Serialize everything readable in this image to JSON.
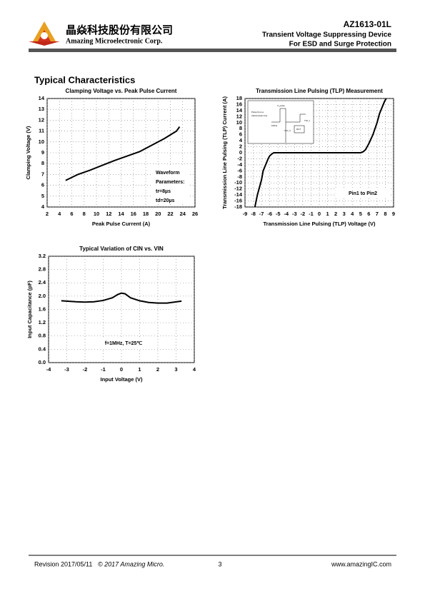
{
  "header": {
    "company_cn": "晶焱科技股份有限公司",
    "company_en": "Amazing Microelectronic Corp.",
    "part": "AZ1613-01L",
    "line1": "Transient Voltage Suppressing Device",
    "line2": "For ESD and Surge Protection"
  },
  "section_title": "Typical Characteristics",
  "chart_data": [
    {
      "type": "line",
      "title": "Clamping Voltage vs. Peak Pulse Current",
      "x_label": "Peak Pulse Current (A)",
      "y_label": "Clamping Voltage (V)",
      "x": [
        5,
        7,
        9,
        11,
        13,
        15,
        17,
        19,
        21,
        23,
        23.5
      ],
      "values": [
        6.45,
        7.0,
        7.4,
        7.85,
        8.3,
        8.7,
        9.1,
        9.7,
        10.3,
        11.0,
        11.4
      ],
      "color": "#000000",
      "xlim": [
        2,
        26
      ],
      "xticks": [
        2,
        4,
        6,
        8,
        10,
        12,
        14,
        16,
        18,
        20,
        22,
        24,
        26
      ],
      "ylim": [
        4,
        14
      ],
      "yticks": [
        4,
        5,
        6,
        7,
        8,
        9,
        10,
        11,
        12,
        13,
        14
      ],
      "grid": true,
      "annotations": [
        "Waveform",
        "Parameters:",
        "tr=8µs",
        "td=20µs"
      ]
    },
    {
      "type": "line",
      "title": "Transmission Line Pulsing (TLP) Measurement",
      "x_label": "Transmission Line Pulsing (TLP) Voltage (V)",
      "y_label": "Transmission Line Pulsing (TLP) Current (A)",
      "x": [
        -7.8,
        -7.5,
        -7.2,
        -7.0,
        -6.8,
        -6.5,
        -6.2,
        -6.0,
        -5.7,
        -5.5,
        -5.0,
        0,
        5.0,
        5.3,
        5.6,
        6.0,
        6.5,
        7.0,
        7.3,
        7.6,
        7.9,
        8.1
      ],
      "values": [
        -18,
        -14,
        -11,
        -9,
        -6,
        -4,
        -2,
        -1,
        -0.3,
        0,
        0,
        0,
        0,
        0.3,
        1,
        3,
        6,
        10,
        13,
        15,
        17,
        18
      ],
      "color": "#000000",
      "xlim": [
        -9,
        9
      ],
      "xticks": [
        -9,
        -8,
        -7,
        -6,
        -5,
        -4,
        -3,
        -2,
        -1,
        0,
        1,
        2,
        3,
        4,
        5,
        6,
        7,
        8,
        9
      ],
      "ylim": [
        -18,
        18
      ],
      "yticks": [
        -18,
        -16,
        -14,
        -12,
        -10,
        -8,
        -6,
        -4,
        -2,
        0,
        2,
        4,
        6,
        8,
        10,
        12,
        14,
        16,
        18
      ],
      "grid": true,
      "annotations": [
        "Pin1 to Pin2"
      ],
      "inset_labels": [
        "V_pulse",
        "Pulse from a",
        "transmission line",
        "100ns",
        "TLP_I",
        "TLP_V",
        "DUT"
      ]
    },
    {
      "type": "line",
      "title": "Typical Variation of CIN vs. VIN",
      "x_label": "Input Voltage (V)",
      "y_label": "Input Capacitance (pF)",
      "x": [
        -3.3,
        -2.5,
        -2,
        -1.5,
        -1,
        -0.5,
        -0.2,
        0,
        0.2,
        0.5,
        1,
        1.5,
        2,
        2.5,
        3.3
      ],
      "values": [
        1.86,
        1.83,
        1.82,
        1.83,
        1.87,
        1.95,
        2.05,
        2.09,
        2.07,
        1.95,
        1.86,
        1.81,
        1.79,
        1.79,
        1.85
      ],
      "color": "#000000",
      "xlim": [
        -4,
        4
      ],
      "xticks": [
        -4,
        -3,
        -2,
        -1,
        0,
        1,
        2,
        3,
        4
      ],
      "ylim": [
        0,
        3.2
      ],
      "yticks": [
        {
          "value": 0,
          "label": "0.0"
        },
        0.4,
        0.8,
        1.2,
        1.6,
        {
          "value": 2,
          "label": "2.0"
        },
        2.4,
        2.8,
        3.2
      ],
      "grid": true,
      "annotations": [
        "f=1MHz, T=25℃"
      ]
    }
  ],
  "footer": {
    "revision": "Revision 2017/05/11",
    "copyright": "© 2017 Amazing Micro.",
    "page": "3",
    "url": "www.amazingIC.com"
  }
}
